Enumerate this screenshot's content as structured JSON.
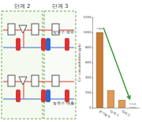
{
  "chart_data": {
    "type": "bar",
    "y_label": "Cs⁺ concentration (ppb)",
    "categories": [
      "초기농도",
      "단계 1",
      "단계 2",
      "단계 3"
    ],
    "values": [
      1000,
      230,
      100,
      0.2
    ],
    "value_labels": [
      "1 ppm",
      null,
      null,
      "0.2 ppb"
    ],
    "data_labels": true,
    "colors": [
      "#c77a30",
      "#e09a55",
      "#e09a55",
      "#e09a55"
    ],
    "ylim": [
      0,
      1200
    ],
    "yticks": [
      0,
      200,
      400,
      600,
      800,
      1000,
      1200
    ],
    "grid": false
  },
  "diagram": {
    "labels": [
      "단계 2",
      "단계 3",
      "방류수 방류",
      "농축수 배출"
    ]
  }
}
